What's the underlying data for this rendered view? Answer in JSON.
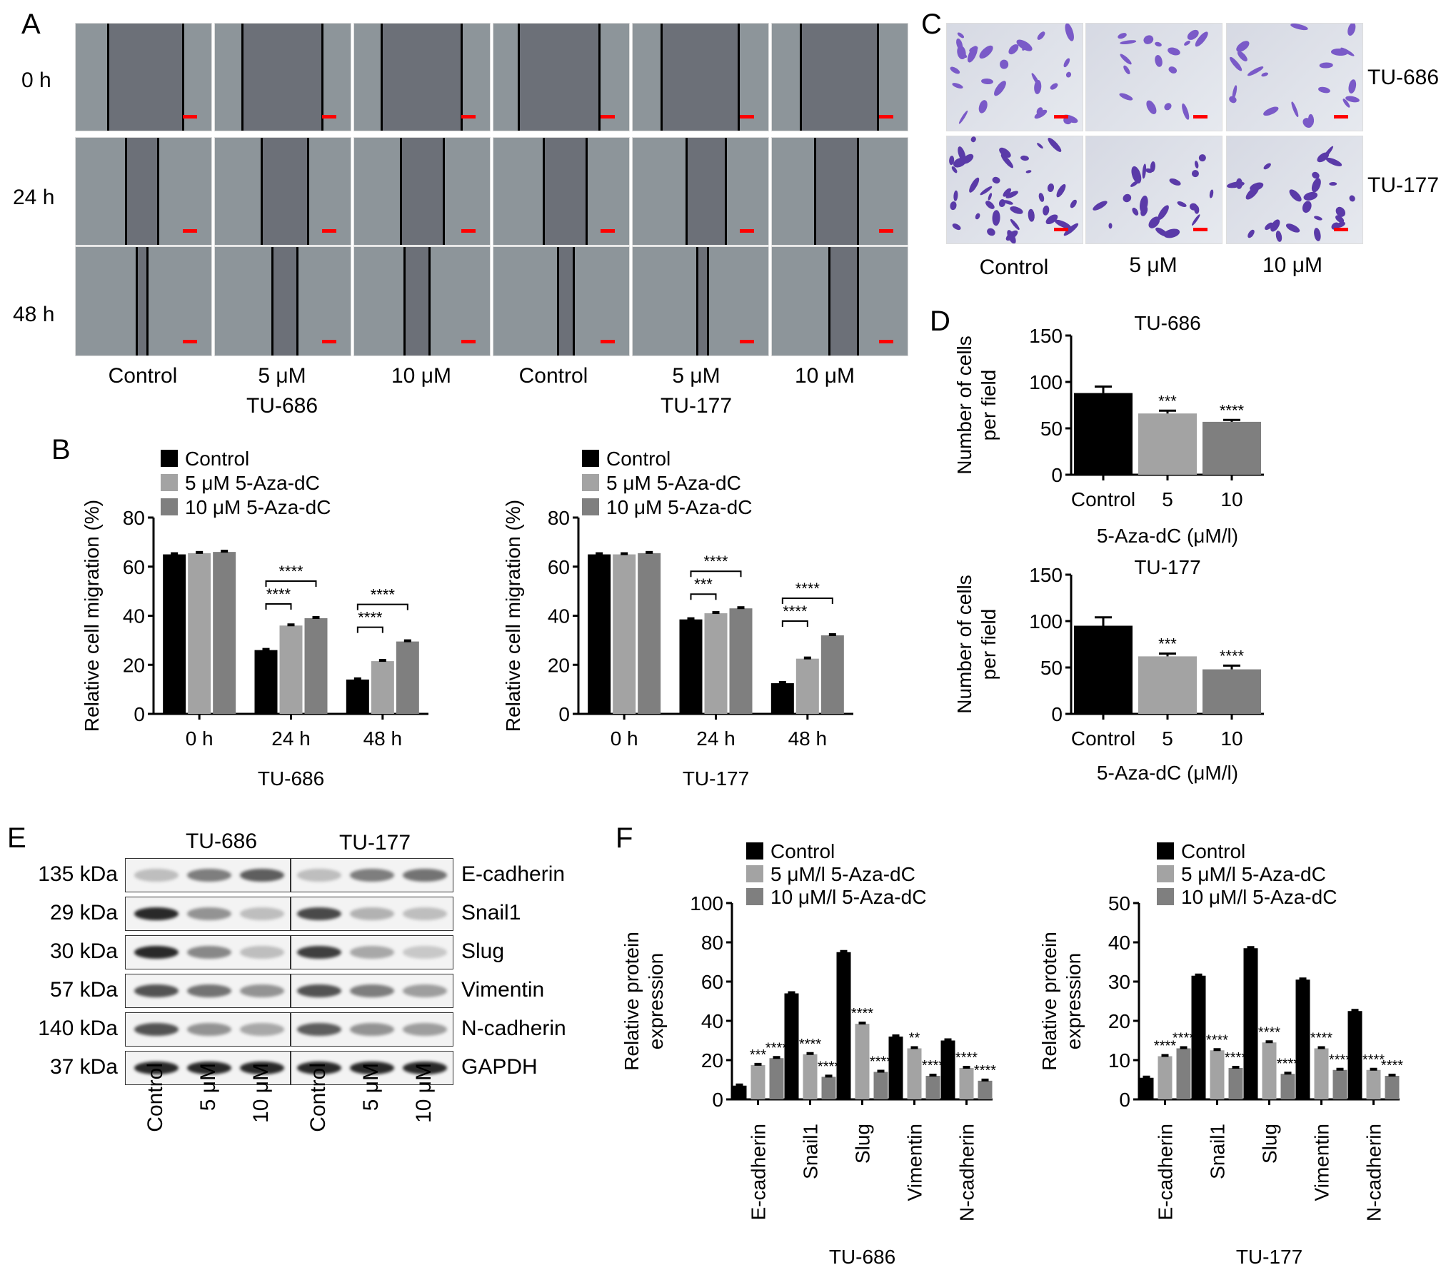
{
  "panels": {
    "A": "A",
    "B": "B",
    "C": "C",
    "D": "D",
    "E": "E",
    "F": "F"
  },
  "panelA": {
    "rows": [
      "0 h",
      "24 h",
      "48 h"
    ],
    "cols": [
      "Control",
      "5 μM",
      "10 μM",
      "Control",
      "5 μM",
      "10 μM"
    ],
    "groups": [
      "TU-686",
      "TU-177"
    ]
  },
  "panelC": {
    "rows": [
      "TU-686",
      "TU-177"
    ],
    "cols": [
      "Control",
      "5 μM",
      "10 μM"
    ]
  },
  "panelE": {
    "groups": [
      "TU-686",
      "TU-177"
    ],
    "sizes": [
      "135 kDa",
      "29 kDa",
      "30 kDa",
      "57 kDa",
      "140 kDa",
      "37 kDa"
    ],
    "proteins": [
      "E-cadherin",
      "Snail1",
      "Slug",
      "Vimentin",
      "N-cadherin",
      "GAPDH"
    ],
    "lanes": [
      "Control",
      "5 μM",
      "10 μM",
      "Control",
      "5 μM",
      "10 μM"
    ]
  },
  "colors": {
    "control": "#000000",
    "c5": "#a3a3a3",
    "c10": "#7f7f7f",
    "scale": "#ff0000"
  },
  "chart_data": [
    {
      "id": "B1",
      "type": "bar",
      "categories": [
        "0 h",
        "24 h",
        "48 h"
      ],
      "series": [
        {
          "name": "Control",
          "values": [
            65,
            26,
            14
          ]
        },
        {
          "name": "5 μM 5-Aza-dC",
          "values": [
            65.5,
            36,
            21.5
          ]
        },
        {
          "name": "10 μM 5-Aza-dC",
          "values": [
            66,
            39,
            29.5
          ]
        }
      ],
      "ylabel": "Relative cell migration (%)",
      "xtitle": "TU-686",
      "ylim": [
        0,
        80
      ],
      "yticks": [
        0,
        20,
        40,
        60,
        80
      ],
      "sig": [
        {
          "cat": 1,
          "pairs": [
            [
              "****",
              0,
              1
            ],
            [
              "****",
              0,
              2
            ]
          ]
        },
        {
          "cat": 2,
          "pairs": [
            [
              "****",
              0,
              1
            ],
            [
              "****",
              0,
              2
            ]
          ]
        }
      ]
    },
    {
      "id": "B2",
      "type": "bar",
      "categories": [
        "0 h",
        "24 h",
        "48 h"
      ],
      "series": [
        {
          "name": "Control",
          "values": [
            65,
            38.5,
            12.5
          ]
        },
        {
          "name": "5 μM 5-Aza-dC",
          "values": [
            65,
            41,
            22.5
          ]
        },
        {
          "name": "10 μM 5-Aza-dC",
          "values": [
            65.5,
            43,
            32
          ]
        }
      ],
      "ylabel": "Relative cell migration (%)",
      "xtitle": "TU-177",
      "ylim": [
        0,
        80
      ],
      "yticks": [
        0,
        20,
        40,
        60,
        80
      ],
      "sig": [
        {
          "cat": 1,
          "pairs": [
            [
              "***",
              0,
              1
            ],
            [
              "****",
              0,
              2
            ]
          ]
        },
        {
          "cat": 2,
          "pairs": [
            [
              "****",
              0,
              1
            ],
            [
              "****",
              0,
              2
            ]
          ]
        }
      ]
    },
    {
      "id": "D1",
      "type": "bar",
      "title": "TU-686",
      "categories": [
        "Control",
        "5",
        "10"
      ],
      "values": [
        88,
        66,
        57
      ],
      "errors": [
        7,
        3,
        2
      ],
      "stars": [
        "",
        "***",
        "****"
      ],
      "ylabel": "Number of cells per field",
      "xlabel": "5-Aza-dC (μM/l)",
      "ylim": [
        0,
        150
      ],
      "yticks": [
        0,
        50,
        100,
        150
      ]
    },
    {
      "id": "D2",
      "type": "bar",
      "title": "TU-177",
      "categories": [
        "Control",
        "5",
        "10"
      ],
      "values": [
        95,
        62,
        48
      ],
      "errors": [
        9,
        3,
        4
      ],
      "stars": [
        "",
        "***",
        "****"
      ],
      "ylabel": "Number of cells per field",
      "xlabel": "5-Aza-dC (μM/l)",
      "ylim": [
        0,
        150
      ],
      "yticks": [
        0,
        50,
        100,
        150
      ]
    },
    {
      "id": "F1",
      "type": "bar",
      "categories": [
        "E-cadherin",
        "Snail1",
        "Slug",
        "Vimentin",
        "N-cadherin"
      ],
      "series": [
        {
          "name": "Control",
          "values": [
            7,
            54,
            75,
            32,
            30
          ]
        },
        {
          "name": "5 μM/l 5-Aza-dC",
          "values": [
            17.5,
            23,
            38.5,
            26,
            16
          ]
        },
        {
          "name": "10 μM/l 5-Aza-dC",
          "values": [
            21,
            11.5,
            14,
            12,
            9.5
          ]
        }
      ],
      "stars": [
        [
          "",
          "***",
          "****"
        ],
        [
          "",
          "****",
          "****"
        ],
        [
          "",
          "****",
          "****"
        ],
        [
          "",
          "**",
          "****"
        ],
        [
          "",
          "****",
          "****"
        ]
      ],
      "ylabel": "Relative protein expression",
      "xtitle": "TU-686",
      "ylim": [
        0,
        100
      ],
      "yticks": [
        0,
        20,
        40,
        60,
        80,
        100
      ]
    },
    {
      "id": "F2",
      "type": "bar",
      "categories": [
        "E-cadherin",
        "Snail1",
        "Slug",
        "Vimentin",
        "N-cadherin"
      ],
      "series": [
        {
          "name": "Control",
          "values": [
            5.5,
            31.5,
            38.5,
            30.5,
            22.5
          ]
        },
        {
          "name": "5 μM/l 5-Aza-dC",
          "values": [
            11,
            12.5,
            14.5,
            13,
            7.5
          ]
        },
        {
          "name": "10 μM/l 5-Aza-dC",
          "values": [
            13,
            8,
            6.5,
            7.5,
            6
          ]
        }
      ],
      "stars": [
        [
          "",
          "****",
          "****"
        ],
        [
          "",
          "****",
          "****"
        ],
        [
          "",
          "****",
          "****"
        ],
        [
          "",
          "****",
          "****"
        ],
        [
          "",
          "****",
          "****"
        ]
      ],
      "ylabel": "Relative protein expression",
      "xtitle": "TU-177",
      "ylim": [
        0,
        50
      ],
      "yticks": [
        0,
        10,
        20,
        30,
        40,
        50
      ]
    }
  ]
}
